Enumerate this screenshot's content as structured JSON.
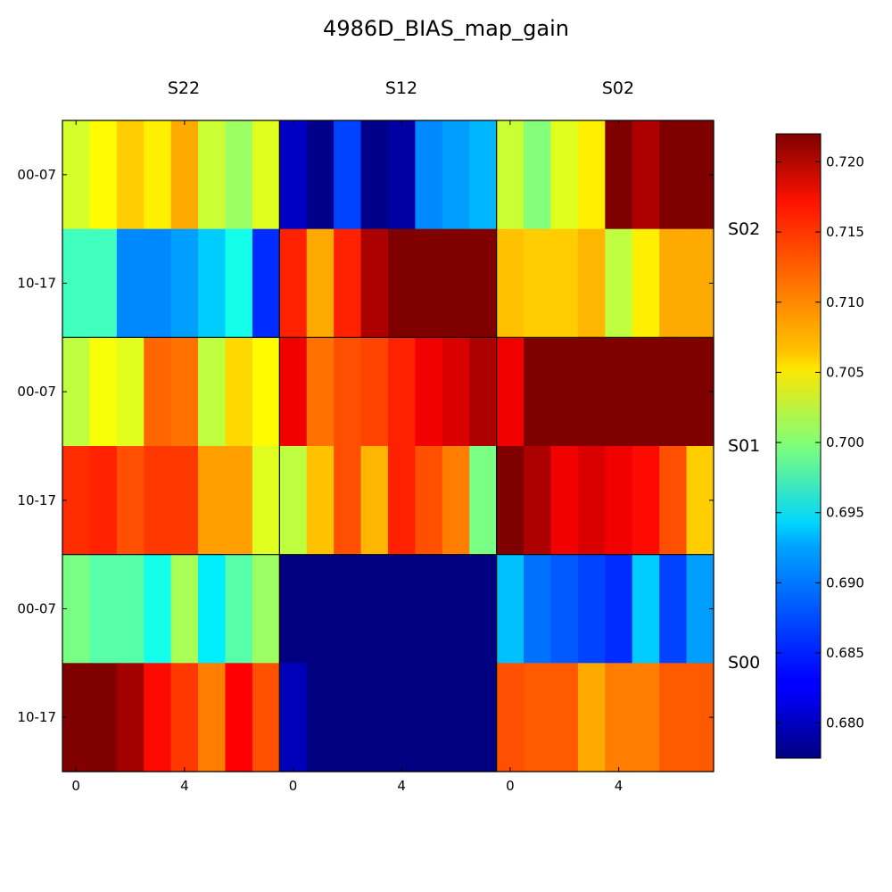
{
  "chart_data": {
    "type": "heatmap",
    "title": "4986D_BIAS_map_gain",
    "colormap": "jet",
    "grid": false,
    "legend": "colorbar-right",
    "column_groups": [
      "S22",
      "S12",
      "S02"
    ],
    "row_groups": [
      "S02",
      "S01",
      "S00"
    ],
    "row_labels": [
      "00-07",
      "10-17"
    ],
    "x_tick_labels": [
      "0",
      "4"
    ],
    "x_ticks": [
      0,
      4
    ],
    "columns_per_group": 8,
    "color_range": [
      0.6775,
      0.722
    ],
    "colorbar_ticks": [
      "0.680",
      "0.685",
      "0.690",
      "0.695",
      "0.700",
      "0.705",
      "0.710",
      "0.715",
      "0.720"
    ],
    "colorbar_tick_values": [
      0.68,
      0.685,
      0.69,
      0.695,
      0.7,
      0.705,
      0.71,
      0.715,
      0.72
    ],
    "values": [
      [
        0.7035,
        0.7055,
        0.7075,
        0.706,
        0.709,
        0.703,
        0.701,
        0.704,
        0.6805,
        0.678,
        0.686,
        0.678,
        0.679,
        0.689,
        0.69,
        0.691,
        0.703,
        0.7,
        0.704,
        0.706,
        0.722,
        0.72,
        0.722,
        0.722
      ],
      [
        0.697,
        0.697,
        0.689,
        0.689,
        0.69,
        0.692,
        0.695,
        0.685,
        0.715,
        0.709,
        0.715,
        0.72,
        0.722,
        0.722,
        0.722,
        0.722,
        0.708,
        0.7075,
        0.7075,
        0.7085,
        0.7025,
        0.706,
        0.709,
        0.709
      ],
      [
        0.7025,
        0.705,
        0.704,
        0.712,
        0.7115,
        0.7025,
        0.707,
        0.7055,
        0.717,
        0.7115,
        0.713,
        0.7135,
        0.715,
        0.717,
        0.718,
        0.72,
        0.717,
        0.722,
        0.722,
        0.722,
        0.722,
        0.722,
        0.722,
        0.722
      ],
      [
        0.7145,
        0.715,
        0.713,
        0.714,
        0.714,
        0.7095,
        0.7095,
        0.704,
        0.7025,
        0.708,
        0.713,
        0.7085,
        0.715,
        0.713,
        0.711,
        0.6995,
        0.722,
        0.72,
        0.717,
        0.718,
        0.717,
        0.716,
        0.713,
        0.7075
      ],
      [
        0.6995,
        0.698,
        0.698,
        0.695,
        0.7015,
        0.6935,
        0.698,
        0.701,
        0.6775,
        0.6775,
        0.6775,
        0.6775,
        0.6775,
        0.6775,
        0.6775,
        0.6775,
        0.6915,
        0.688,
        0.687,
        0.686,
        0.685,
        0.692,
        0.686,
        0.69
      ],
      [
        0.722,
        0.722,
        0.7205,
        0.716,
        0.714,
        0.711,
        0.7165,
        0.713,
        0.68,
        0.6775,
        0.6775,
        0.6775,
        0.6775,
        0.6775,
        0.6775,
        0.6775,
        0.713,
        0.7125,
        0.7125,
        0.709,
        0.711,
        0.711,
        0.7125,
        0.7125
      ]
    ]
  }
}
